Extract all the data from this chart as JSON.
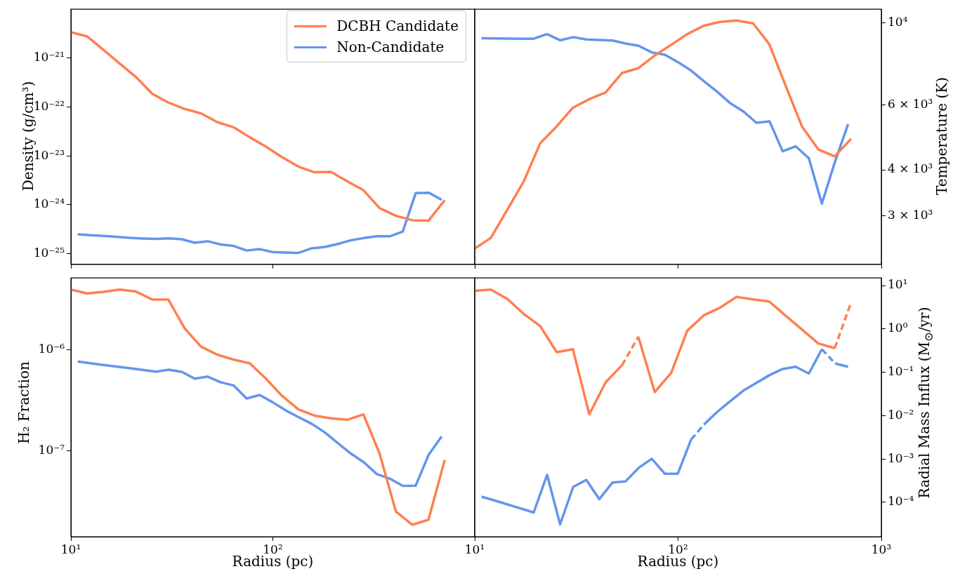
{
  "chart_data": [
    {
      "type": "line",
      "ylabel": "Density (g/cm³)",
      "log": "xy",
      "legend": "top right",
      "tick_labels": "y",
      "xlim": [
        10,
        1000
      ],
      "xticks": [
        {
          "value": 10,
          "label": null
        },
        {
          "value": 100,
          "label": null
        },
        {
          "value": 1000,
          "label": null
        }
      ],
      "ylim": [
        6e-26,
        1e-20
      ],
      "yticks": [
        {
          "value": 1e-25,
          "label": "10⁻²⁵"
        },
        {
          "value": 1e-24,
          "label": "10⁻²⁴"
        },
        {
          "value": 1e-23,
          "label": "10⁻²³"
        },
        {
          "value": 1e-22,
          "label": "10⁻²²"
        },
        {
          "value": 1e-21,
          "label": "10⁻²¹"
        }
      ],
      "series": [
        {
          "name": "DCBH Candidate",
          "color": "#ff7f50",
          "x": [
            10,
            12.0,
            14.5,
            17.4,
            21.0,
            25.3,
            30.4,
            36.6,
            44.1,
            53.0,
            63.8,
            76.8,
            92.5,
            111,
            134,
            161,
            194,
            234,
            281,
            338,
            407,
            490,
            590,
            710
          ],
          "values": [
            3.4e-21,
            2.8e-21,
            1.47e-21,
            7.8e-22,
            4.1e-22,
            1.86e-22,
            1.23e-22,
            9.1e-23,
            7.4e-23,
            4.9e-23,
            3.85e-23,
            2.4e-23,
            1.54e-23,
            9.4e-24,
            6e-24,
            4.6e-24,
            4.7e-24,
            3e-24,
            1.98e-24,
            8.5e-25,
            5.9e-25,
            4.8e-25,
            4.7e-25,
            1.23e-24
          ]
        },
        {
          "name": "Non-Candidate",
          "color": "#6495ed",
          "x": [
            10.8,
            12.5,
            14.5,
            16.8,
            19.5,
            22.7,
            26.3,
            30.5,
            35.4,
            41.0,
            47.6,
            55.2,
            64.0,
            74.2,
            86.1,
            99.8,
            116,
            134,
            156,
            181,
            210,
            243,
            282,
            327,
            379,
            440,
            510,
            592,
            686
          ],
          "values": [
            2.47e-25,
            2.37e-25,
            2.29e-25,
            2.2e-25,
            2.1e-25,
            2.03e-25,
            1.99e-25,
            2.04e-25,
            1.96e-25,
            1.66e-25,
            1.78e-25,
            1.53e-25,
            1.43e-25,
            1.15e-25,
            1.23e-25,
            1.07e-25,
            1.05e-25,
            1.03e-25,
            1.28e-25,
            1.36e-25,
            1.57e-25,
            1.86e-25,
            2.07e-25,
            2.25e-25,
            2.25e-25,
            2.8e-25,
            1.72e-24,
            1.76e-24,
            1.26e-24
          ]
        }
      ]
    },
    {
      "type": "line",
      "ylabel": "Temperature (K)",
      "log": "xy",
      "tick_labels": "y",
      "xlim": [
        10,
        1000
      ],
      "xticks": [
        {
          "value": 10,
          "label": null
        },
        {
          "value": 100,
          "label": null
        },
        {
          "value": 1000,
          "label": null
        }
      ],
      "ylim": [
        2220,
        10870
      ],
      "yticks": [
        {
          "value": 3000,
          "label": "3 × 10³"
        },
        {
          "value": 4000,
          "label": "4 × 10³"
        },
        {
          "value": 6000,
          "label": "6 × 10³"
        },
        {
          "value": 10000,
          "label": "10⁴"
        }
      ],
      "series": [
        {
          "color": "#ff7f50",
          "x": [
            10,
            12.0,
            14.5,
            17.4,
            21.0,
            25.3,
            30.4,
            36.6,
            44.1,
            53.0,
            63.8,
            76.8,
            92.5,
            111,
            134,
            161,
            194,
            234,
            281,
            338,
            407,
            490,
            590,
            710
          ],
          "values": [
            2450,
            2617,
            3126,
            3715,
            4720,
            5240,
            5890,
            6210,
            6480,
            7310,
            7530,
            8150,
            8710,
            9310,
            9810,
            10050,
            10130,
            9960,
            8750,
            6760,
            5240,
            4540,
            4350,
            4850
          ]
        },
        {
          "color": "#6495ed",
          "x": [
            10.8,
            12.5,
            14.5,
            16.8,
            19.5,
            22.7,
            26.3,
            30.5,
            35.4,
            41.0,
            47.6,
            55.2,
            64.0,
            74.2,
            86.1,
            99.8,
            116,
            134,
            156,
            181,
            210,
            243,
            282,
            327,
            379,
            440,
            510,
            592,
            686
          ],
          "values": [
            9080,
            9070,
            9060,
            9050,
            9050,
            9310,
            8960,
            9140,
            9010,
            8980,
            8950,
            8780,
            8660,
            8310,
            8190,
            7820,
            7420,
            6950,
            6500,
            6050,
            5750,
            5360,
            5410,
            4490,
            4630,
            4300,
            3240,
            4210,
            5310
          ]
        }
      ]
    },
    {
      "type": "line",
      "ylabel": "H₂ Fraction",
      "xlabel": "Radius (pc)",
      "log": "xy",
      "xlim": [
        10,
        1000
      ],
      "xticks": [
        {
          "value": 10,
          "label": "10¹"
        },
        {
          "value": 100,
          "label": "10²"
        },
        {
          "value": 1000,
          "label": null
        }
      ],
      "ylim": [
        1.4e-08,
        5.2e-06
      ],
      "yticks": [
        {
          "value": 1e-07,
          "label": "10⁻⁷"
        },
        {
          "value": 1e-06,
          "label": "10⁻⁶"
        }
      ],
      "series": [
        {
          "color": "#ff7f50",
          "x": [
            10,
            12.0,
            14.5,
            17.4,
            21.0,
            25.3,
            30.4,
            36.6,
            44.1,
            53.0,
            63.8,
            76.8,
            92.5,
            111,
            134,
            161,
            194,
            234,
            281,
            338,
            407,
            490,
            590,
            710
          ],
          "values": [
            3.99e-06,
            3.65e-06,
            3.78e-06,
            3.99e-06,
            3.81e-06,
            3.17e-06,
            3.17e-06,
            1.64e-06,
            1.08e-06,
            9e-07,
            8.05e-07,
            7.4e-07,
            5.2e-07,
            3.51e-07,
            2.57e-07,
            2.23e-07,
            2.1e-07,
            2.03e-07,
            2.3e-07,
            9.35e-08,
            2.49e-08,
            1.84e-08,
            2.06e-08,
            8.1e-08
          ]
        },
        {
          "color": "#6495ed",
          "x": [
            10.8,
            12.5,
            14.5,
            16.8,
            19.5,
            22.7,
            26.3,
            30.5,
            35.4,
            41.0,
            47.6,
            55.2,
            64.0,
            74.2,
            86.1,
            99.8,
            116,
            134,
            156,
            181,
            210,
            243,
            282,
            327,
            379,
            440,
            510,
            592,
            686
          ],
          "values": [
            7.69e-07,
            7.4e-07,
            7.11e-07,
            6.85e-07,
            6.6e-07,
            6.35e-07,
            6.11e-07,
            6.37e-07,
            6.07e-07,
            5.2e-07,
            5.45e-07,
            4.79e-07,
            4.45e-07,
            3.3e-07,
            3.58e-07,
            3.03e-07,
            2.51e-07,
            2.16e-07,
            1.85e-07,
            1.52e-07,
            1.19e-07,
            9.4e-08,
            7.7e-08,
            5.87e-08,
            5.3e-08,
            4.48e-08,
            4.5e-08,
            9.16e-08,
            1.39e-07
          ]
        }
      ]
    },
    {
      "type": "line",
      "ylabel": "Radial Mass Influx (M$_{⊙}$/yr)",
      "xlabel": "Radius (pc)",
      "log": "xy",
      "xlim": [
        10,
        1000
      ],
      "xticks": [
        {
          "value": 10,
          "label": "10¹"
        },
        {
          "value": 100,
          "label": "10²"
        },
        {
          "value": 1000,
          "label": "10³"
        }
      ],
      "ylim": [
        1.6e-05,
        15
      ],
      "yticks": [
        {
          "value": 0.0001,
          "label": "10⁻⁴"
        },
        {
          "value": 0.001,
          "label": "10⁻³"
        },
        {
          "value": 0.01,
          "label": "10⁻²"
        },
        {
          "value": 0.1,
          "label": "10⁻¹"
        },
        {
          "value": 1,
          "label": "10⁰"
        },
        {
          "value": 10,
          "label": "10¹"
        }
      ],
      "series": [
        {
          "color": "#6495ed",
          "x": [
            10.8,
            12.5,
            14.5,
            16.8,
            19.5,
            22.7,
            26.3,
            30.5,
            35.4,
            41.0,
            47.6,
            55.2,
            64.0,
            74.2,
            86.1,
            99.8,
            116
          ],
          "values": [
            0.000134,
            0.00011,
            8.9e-05,
            7.2e-05,
            5.8e-05,
            0.00043,
            3.1e-05,
            0.000226,
            0.000328,
            0.000118,
            0.000284,
            0.000303,
            0.00062,
            0.00101,
            0.000455,
            0.000455,
            0.0028
          ]
        },
        {
          "color": "#6495ed",
          "line_style": "dashed",
          "x": [
            116,
            134
          ],
          "values": [
            0.0028,
            0.0062
          ]
        },
        {
          "color": "#6495ed",
          "x": [
            134,
            156,
            181,
            210,
            243,
            282,
            327,
            379,
            440,
            510
          ],
          "values": [
            0.0062,
            0.0122,
            0.0216,
            0.038,
            0.057,
            0.086,
            0.119,
            0.134,
            0.093,
            0.34
          ]
        },
        {
          "color": "#6495ed",
          "line_style": "dashed",
          "x": [
            510,
            592
          ],
          "values": [
            0.34,
            0.16
          ]
        },
        {
          "color": "#6495ed",
          "x": [
            592,
            686
          ],
          "values": [
            0.16,
            0.134
          ]
        },
        {
          "color": "#ff7f50",
          "x": [
            10,
            12.0,
            14.5,
            17.4,
            21.0,
            25.3,
            30.4,
            36.6,
            44.1,
            53.0
          ],
          "values": [
            7.6,
            8.1,
            4.9,
            2.23,
            1.16,
            0.29,
            0.34,
            0.0107,
            0.059,
            0.145
          ]
        },
        {
          "color": "#ff7f50",
          "line_style": "dashed",
          "x": [
            53.0,
            63.8
          ],
          "values": [
            0.145,
            0.66
          ]
        },
        {
          "color": "#ff7f50",
          "x": [
            63.8,
            76.8,
            92.5,
            111,
            134,
            161,
            194,
            234,
            281,
            338,
            407,
            490,
            590
          ],
          "values": [
            0.66,
            0.035,
            0.096,
            0.91,
            2.06,
            3.1,
            5.5,
            4.8,
            4.3,
            2.03,
            0.97,
            0.46,
            0.36
          ]
        },
        {
          "color": "#ff7f50",
          "line_style": "dashed",
          "x": [
            590,
            710
          ],
          "values": [
            0.36,
            4.1
          ]
        }
      ]
    }
  ]
}
